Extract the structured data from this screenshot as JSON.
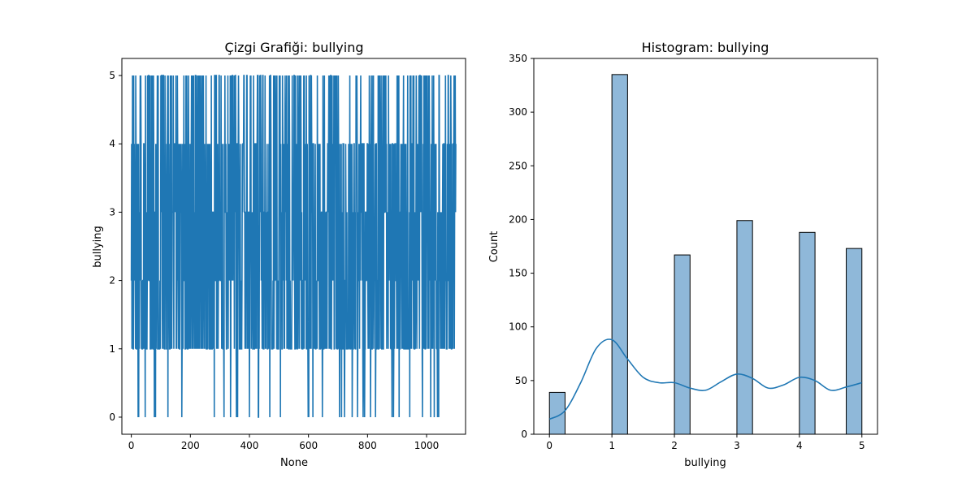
{
  "chart_data": [
    {
      "type": "line",
      "title": "Çizgi Grafiği: bullying",
      "xlabel": "None",
      "ylabel": "bullying",
      "xlim": [
        -32,
        1132
      ],
      "ylim": [
        -0.25,
        5.25
      ],
      "xticks": [
        0,
        200,
        400,
        600,
        800,
        1000
      ],
      "yticks": [
        0,
        1,
        2,
        3,
        4,
        5
      ],
      "grid": false,
      "color": "#1f77b4",
      "series": [
        {
          "x_range": [
            0,
            1099
          ],
          "note_values": "1100 samples with values in {0,1,2,3,4,5}; sequence follows value counts of histogram",
          "counts": {
            "0": 39,
            "1": 335,
            "2": 167,
            "3": 199,
            "4": 188,
            "5": 173
          }
        }
      ]
    },
    {
      "type": "bar",
      "title": "Histogram: bullying",
      "xlabel": "bullying",
      "ylabel": "Count",
      "xlim": [
        -0.25,
        5.25
      ],
      "ylim": [
        0,
        350
      ],
      "xticks": [
        0,
        1,
        2,
        3,
        4,
        5
      ],
      "yticks": [
        0,
        50,
        100,
        150,
        200,
        250,
        300,
        350
      ],
      "grid": false,
      "bar_color": "#8fb8d9",
      "line_color": "#1f77b4",
      "bar_width": 0.25,
      "categories": [
        0,
        1,
        2,
        3,
        4,
        5
      ],
      "values": [
        39,
        335,
        167,
        199,
        188,
        173
      ],
      "kde": {
        "x": [
          0,
          0.25,
          0.5,
          0.75,
          1.0,
          1.25,
          1.5,
          1.75,
          2.0,
          2.25,
          2.5,
          2.75,
          3.0,
          3.25,
          3.5,
          3.75,
          4.0,
          4.25,
          4.5,
          4.75,
          5.0
        ],
        "y": [
          14,
          22,
          48,
          80,
          88,
          70,
          53,
          48,
          48,
          43,
          41,
          49,
          56,
          52,
          43,
          46,
          53,
          50,
          41,
          44,
          48
        ]
      }
    }
  ]
}
